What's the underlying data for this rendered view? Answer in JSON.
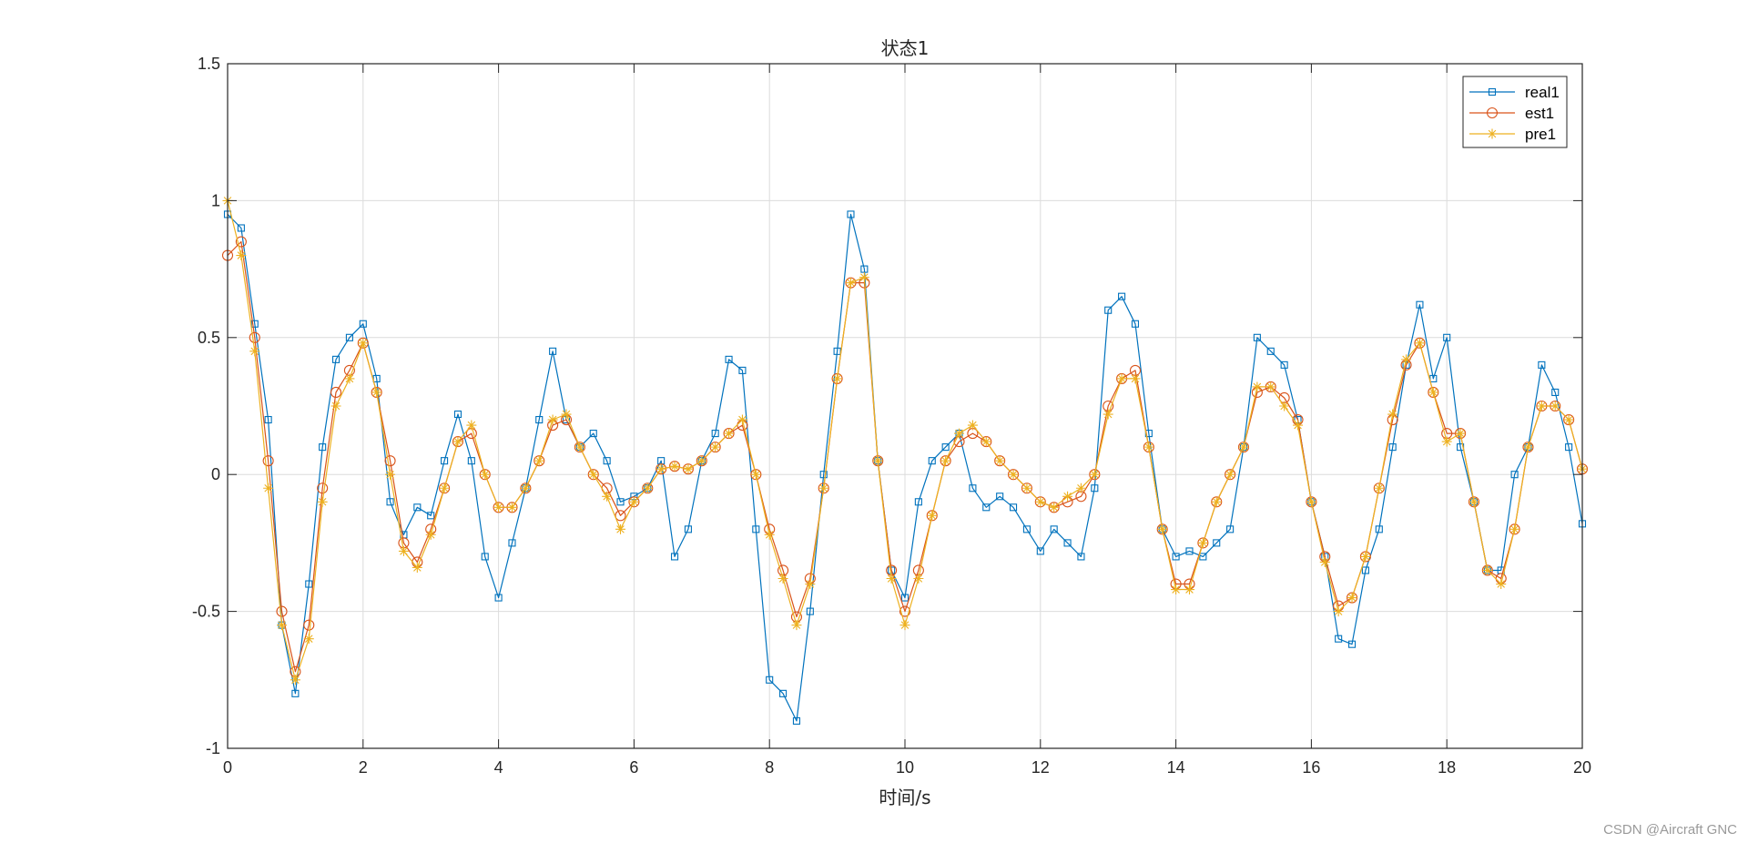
{
  "chart_data": {
    "type": "line",
    "title": "状态1",
    "xlabel": "时间/s",
    "ylabel": "",
    "xlim": [
      0,
      20
    ],
    "ylim": [
      -1,
      1.5
    ],
    "xticks": [
      0,
      2,
      4,
      6,
      8,
      10,
      12,
      14,
      16,
      18,
      20
    ],
    "yticks": [
      -1,
      -0.5,
      0,
      0.5,
      1,
      1.5
    ],
    "xtick_labels": [
      "0",
      "2",
      "4",
      "6",
      "8",
      "10",
      "12",
      "14",
      "16",
      "18",
      "20"
    ],
    "ytick_labels": [
      "-1",
      "-0.5",
      "0",
      "0.5",
      "1",
      "1.5"
    ],
    "grid": true,
    "legend_position": "top-right",
    "x": [
      0,
      0.2,
      0.4,
      0.6,
      0.8,
      1.0,
      1.2,
      1.4,
      1.6,
      1.8,
      2.0,
      2.2,
      2.4,
      2.6,
      2.8,
      3.0,
      3.2,
      3.4,
      3.6,
      3.8,
      4.0,
      4.2,
      4.4,
      4.6,
      4.8,
      5.0,
      5.2,
      5.4,
      5.6,
      5.8,
      6.0,
      6.2,
      6.4,
      6.6,
      6.8,
      7.0,
      7.2,
      7.4,
      7.6,
      7.8,
      8.0,
      8.2,
      8.4,
      8.6,
      8.8,
      9.0,
      9.2,
      9.4,
      9.6,
      9.8,
      10.0,
      10.2,
      10.4,
      10.6,
      10.8,
      11.0,
      11.2,
      11.4,
      11.6,
      11.8,
      12.0,
      12.2,
      12.4,
      12.6,
      12.8,
      13.0,
      13.2,
      13.4,
      13.6,
      13.8,
      14.0,
      14.2,
      14.4,
      14.6,
      14.8,
      15.0,
      15.2,
      15.4,
      15.6,
      15.8,
      16.0,
      16.2,
      16.4,
      16.6,
      16.8,
      17.0,
      17.2,
      17.4,
      17.6,
      17.8,
      18.0,
      18.2,
      18.4,
      18.6,
      18.8,
      19.0,
      19.2,
      19.4,
      19.6,
      19.8,
      20.0
    ],
    "series": [
      {
        "name": "real1",
        "color": "#0072BD",
        "marker": "square",
        "values": [
          0.95,
          0.9,
          0.55,
          0.2,
          -0.55,
          -0.8,
          -0.4,
          0.1,
          0.42,
          0.5,
          0.55,
          0.35,
          -0.1,
          -0.22,
          -0.12,
          -0.15,
          0.05,
          0.22,
          0.05,
          -0.3,
          -0.45,
          -0.25,
          -0.05,
          0.2,
          0.45,
          0.2,
          0.1,
          0.15,
          0.05,
          -0.1,
          -0.08,
          -0.05,
          0.05,
          -0.3,
          -0.2,
          0.05,
          0.15,
          0.42,
          0.38,
          -0.2,
          -0.75,
          -0.8,
          -0.9,
          -0.5,
          0.0,
          0.45,
          0.95,
          0.75,
          0.05,
          -0.35,
          -0.45,
          -0.1,
          0.05,
          0.1,
          0.15,
          -0.05,
          -0.12,
          -0.08,
          -0.12,
          -0.2,
          -0.28,
          -0.2,
          -0.25,
          -0.3,
          -0.05,
          0.6,
          0.65,
          0.55,
          0.15,
          -0.2,
          -0.3,
          -0.28,
          -0.3,
          -0.25,
          -0.2,
          0.1,
          0.5,
          0.45,
          0.4,
          0.2,
          -0.1,
          -0.3,
          -0.6,
          -0.62,
          -0.35,
          -0.2,
          0.1,
          0.4,
          0.62,
          0.35,
          0.5,
          0.1,
          -0.1,
          -0.35,
          -0.35,
          0.0,
          0.1,
          0.4,
          0.3,
          0.1,
          -0.18
        ]
      },
      {
        "name": "est1",
        "color": "#D95319",
        "marker": "circle",
        "values": [
          0.8,
          0.85,
          0.5,
          0.05,
          -0.5,
          -0.72,
          -0.55,
          -0.05,
          0.3,
          0.38,
          0.48,
          0.3,
          0.05,
          -0.25,
          -0.32,
          -0.2,
          -0.05,
          0.12,
          0.15,
          0.0,
          -0.12,
          -0.12,
          -0.05,
          0.05,
          0.18,
          0.2,
          0.1,
          0.0,
          -0.05,
          -0.15,
          -0.1,
          -0.05,
          0.02,
          0.03,
          0.02,
          0.05,
          0.1,
          0.15,
          0.18,
          0.0,
          -0.2,
          -0.35,
          -0.52,
          -0.38,
          -0.05,
          0.35,
          0.7,
          0.7,
          0.05,
          -0.35,
          -0.5,
          -0.35,
          -0.15,
          0.05,
          0.12,
          0.15,
          0.12,
          0.05,
          0.0,
          -0.05,
          -0.1,
          -0.12,
          -0.1,
          -0.08,
          0.0,
          0.25,
          0.35,
          0.38,
          0.1,
          -0.2,
          -0.4,
          -0.4,
          -0.25,
          -0.1,
          0.0,
          0.1,
          0.3,
          0.32,
          0.28,
          0.2,
          -0.1,
          -0.3,
          -0.48,
          -0.45,
          -0.3,
          -0.05,
          0.2,
          0.4,
          0.48,
          0.3,
          0.15,
          0.15,
          -0.1,
          -0.35,
          -0.38,
          -0.2,
          0.1,
          0.25,
          0.25,
          0.2,
          0.02
        ]
      },
      {
        "name": "pre1",
        "color": "#EDB120",
        "marker": "star",
        "values": [
          1.0,
          0.8,
          0.45,
          -0.05,
          -0.55,
          -0.75,
          -0.6,
          -0.1,
          0.25,
          0.35,
          0.48,
          0.3,
          0.0,
          -0.28,
          -0.34,
          -0.22,
          -0.05,
          0.12,
          0.18,
          0.0,
          -0.12,
          -0.12,
          -0.05,
          0.05,
          0.2,
          0.22,
          0.1,
          0.0,
          -0.08,
          -0.2,
          -0.1,
          -0.05,
          0.02,
          0.03,
          0.02,
          0.05,
          0.1,
          0.15,
          0.2,
          0.0,
          -0.22,
          -0.38,
          -0.55,
          -0.4,
          -0.05,
          0.35,
          0.7,
          0.72,
          0.05,
          -0.38,
          -0.55,
          -0.38,
          -0.15,
          0.05,
          0.15,
          0.18,
          0.12,
          0.05,
          0.0,
          -0.05,
          -0.1,
          -0.12,
          -0.08,
          -0.05,
          0.0,
          0.22,
          0.35,
          0.35,
          0.1,
          -0.2,
          -0.42,
          -0.42,
          -0.25,
          -0.1,
          0.0,
          0.1,
          0.32,
          0.32,
          0.25,
          0.18,
          -0.1,
          -0.32,
          -0.5,
          -0.45,
          -0.3,
          -0.05,
          0.22,
          0.42,
          0.48,
          0.3,
          0.12,
          0.15,
          -0.1,
          -0.35,
          -0.4,
          -0.2,
          0.1,
          0.25,
          0.25,
          0.2,
          0.02
        ]
      }
    ]
  },
  "watermark": "CSDN @Aircraft GNC"
}
